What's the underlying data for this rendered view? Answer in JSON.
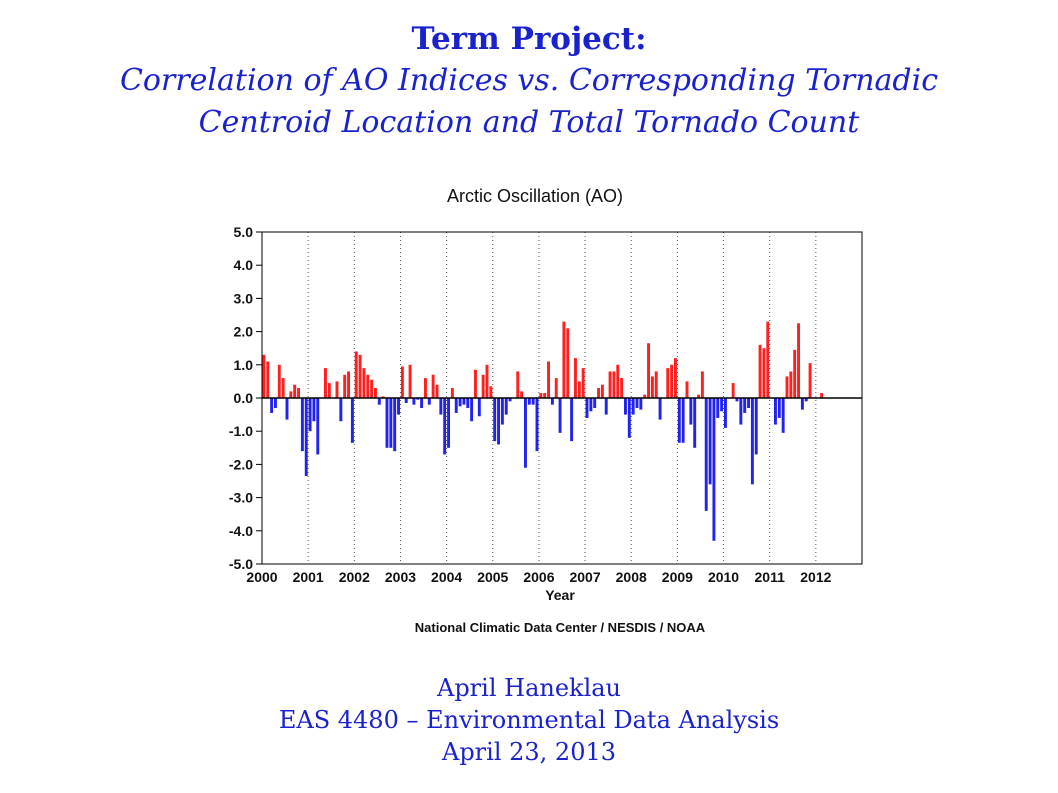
{
  "title": {
    "main": "Term Project:",
    "sub_line1": "Correlation of AO Indices vs. Corresponding Tornadic",
    "sub_line2": "Centroid Location and Total Tornado Count"
  },
  "chart_data": {
    "type": "bar",
    "title": "Arctic Oscillation (AO)",
    "xlabel": "Year",
    "ylabel": "",
    "credit": "National Climatic Data Center / NESDIS / NOAA",
    "xlim": [
      2000,
      2013
    ],
    "ylim": [
      -5,
      5
    ],
    "yticks": [
      "5.0",
      "4.0",
      "3.0",
      "2.0",
      "1.0",
      "0.0",
      "-1.0",
      "-2.0",
      "-3.0",
      "-4.0",
      "-5.0"
    ],
    "xticks": [
      "2000",
      "2001",
      "2002",
      "2003",
      "2004",
      "2005",
      "2006",
      "2007",
      "2008",
      "2009",
      "2010",
      "2011",
      "2012"
    ],
    "grid": "vertical dotted lines at each year",
    "colors": {
      "positive": "#ff1f1f",
      "negative": "#2222ee"
    },
    "start": "2000-01",
    "end": "2012-12",
    "values": [
      1.3,
      1.1,
      -0.45,
      -0.3,
      1.0,
      0.6,
      -0.65,
      0.2,
      0.4,
      0.3,
      -1.6,
      -2.35,
      -1.0,
      -0.7,
      -1.7,
      0.0,
      0.9,
      0.45,
      0.0,
      0.5,
      -0.7,
      0.7,
      0.8,
      -1.35,
      1.4,
      1.3,
      0.9,
      0.7,
      0.55,
      0.3,
      -0.2,
      0.05,
      -1.5,
      -1.5,
      -1.6,
      -0.5,
      0.95,
      -0.15,
      1.0,
      -0.2,
      -0.05,
      -0.3,
      0.6,
      -0.2,
      0.7,
      0.4,
      -0.5,
      -1.7,
      -1.5,
      0.3,
      -0.45,
      -0.25,
      -0.2,
      -0.3,
      -0.7,
      0.85,
      -0.55,
      0.7,
      1.0,
      0.35,
      -1.3,
      -1.4,
      -0.8,
      -0.5,
      -0.1,
      0.0,
      0.8,
      0.2,
      -2.1,
      -0.2,
      -0.2,
      -1.6,
      0.15,
      0.15,
      1.1,
      -0.2,
      0.6,
      -1.05,
      2.3,
      2.1,
      -1.3,
      1.2,
      0.5,
      0.9,
      -0.6,
      -0.4,
      -0.3,
      0.3,
      0.4,
      -0.5,
      0.8,
      0.8,
      1.0,
      0.6,
      -0.5,
      -1.2,
      -0.5,
      -0.3,
      -0.35,
      0.1,
      1.65,
      0.65,
      0.8,
      -0.65,
      0.0,
      0.9,
      1.0,
      1.2,
      -1.35,
      -1.35,
      0.5,
      -0.8,
      -1.5,
      0.1,
      0.8,
      -3.4,
      -2.6,
      -4.3,
      -0.6,
      -0.4,
      -0.9,
      0.0,
      0.45,
      -0.1,
      -0.8,
      -0.45,
      -0.3,
      -2.6,
      -1.7,
      1.6,
      1.5,
      2.3,
      0.0,
      -0.8,
      -0.6,
      -1.05,
      0.65,
      0.8,
      1.45,
      2.25,
      -0.35,
      -0.1,
      1.05,
      0.0,
      0.0,
      0.15,
      0.0,
      0.0,
      0.0,
      0.0,
      0.0,
      0.0,
      0.0,
      0.0,
      0.0,
      0.0
    ]
  },
  "footer": {
    "author": "April Haneklau",
    "course": "EAS 4480 – Environmental Data Analysis",
    "date": "April 23, 2013"
  }
}
